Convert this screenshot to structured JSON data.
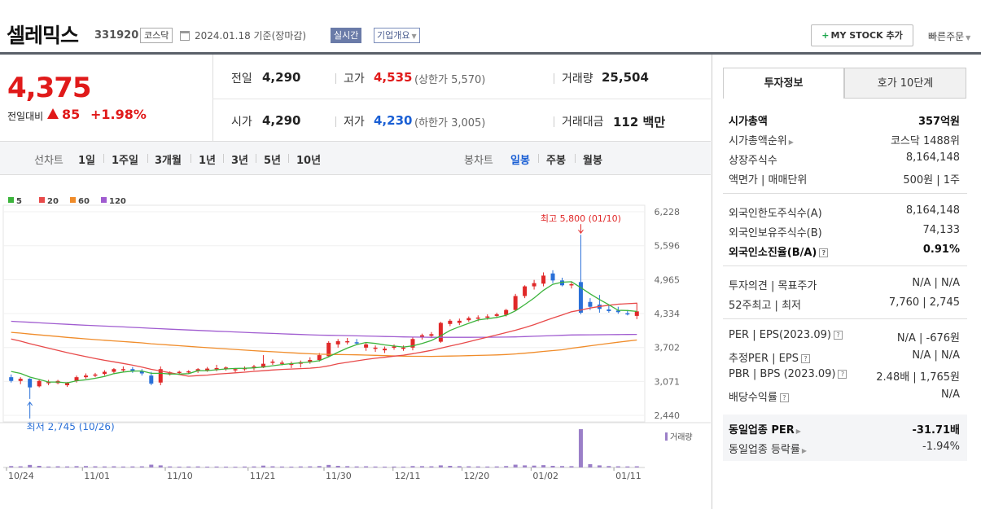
{
  "header": {
    "stock_name": "셀레믹스",
    "stock_code": "331920",
    "market": "코스닥",
    "basis_date": "2024.01.18  기준(장마감)",
    "realtime": "실시간",
    "company_overview": "기업개요",
    "mystock_plus": "+",
    "mystock": "MY STOCK 추가",
    "quick_order": "빠른주문"
  },
  "price": {
    "current": "4,375",
    "change_label": "전일대비",
    "change_value": "85",
    "change_pct": "+1.98%",
    "prev_close_label": "전일",
    "prev_close": "4,290",
    "high_label": "고가",
    "high": "4,535",
    "upper_limit": "(상한가 5,570)",
    "volume_label": "거래량",
    "volume": "25,504",
    "open_label": "시가",
    "open": "4,290",
    "low_label": "저가",
    "low": "4,230",
    "lower_limit": "(하한가 3,005)",
    "amount_label": "거래대금",
    "amount": "112 백만"
  },
  "period_bar": {
    "line_label": "선차트",
    "line_items": [
      "1일",
      "1주일",
      "3개월",
      "1년",
      "3년",
      "5년",
      "10년"
    ],
    "candle_label": "봉차트",
    "candle_items": [
      "일봉",
      "주봉",
      "월봉"
    ]
  },
  "tabs": {
    "invest": "투자정보",
    "hoga": "호가 10단계"
  },
  "info": {
    "market_cap_label": "시가총액",
    "market_cap": "357억원",
    "cap_rank_label": "시가총액순위",
    "cap_rank": "코스닥 1488위",
    "shares_label": "상장주식수",
    "shares": "8,164,148",
    "par_label": "액면가 | 매매단위",
    "par": "500원 | 1주",
    "foreign_limit_label": "외국인한도주식수(A)",
    "foreign_limit": "8,164,148",
    "foreign_hold_label": "외국인보유주식수(B)",
    "foreign_hold": "74,133",
    "foreign_ratio_label": "외국인소진율(B/A)",
    "foreign_ratio": "0.91%",
    "opinion_label": "투자의견 | 목표주가",
    "opinion": "N/A | N/A",
    "w52_label": "52주최고 | 최저",
    "w52": "7,760 | 2,745",
    "per_label": "PER | EPS(2023.09)",
    "per": "N/A | -676원",
    "est_per_label": "추정PER | EPS",
    "est_per": "N/A | N/A",
    "pbr_label": "PBR | BPS (2023.09)",
    "pbr": "2.48배 | 1,765원",
    "div_label": "배당수익률",
    "div": "N/A",
    "peer_per_label": "동일업종 PER",
    "peer_per": "-31.71배",
    "peer_rate_label": "동일업종 등락률",
    "peer_rate": "-1.94%",
    "qmark": "?"
  },
  "chart_data": {
    "type": "candlestick",
    "legend": [
      {
        "name": "5",
        "color": "#3cb43c"
      },
      {
        "name": "20",
        "color": "#e84a4a"
      },
      {
        "name": "60",
        "color": "#f08c2a"
      },
      {
        "name": "120",
        "color": "#a05cd0"
      }
    ],
    "y_ticks": [
      "6,228",
      "5,596",
      "4,965",
      "4,334",
      "3,702",
      "3,071",
      "2,440"
    ],
    "ylim": [
      2440,
      6228
    ],
    "x_ticks": [
      "10/24",
      "11/01",
      "11/10",
      "11/21",
      "11/30",
      "12/11",
      "12/20",
      "01/02",
      "01/11"
    ],
    "high_annotation": "최고 5,800 (01/10)",
    "low_annotation": "최저 2,745 (10/26)",
    "volume_label": "거래량",
    "candles": [
      [
        3150,
        3200,
        3050,
        3080
      ],
      [
        3080,
        3150,
        3020,
        3120
      ],
      [
        3120,
        3130,
        2745,
        2960
      ],
      [
        2980,
        3100,
        2960,
        3080
      ],
      [
        3050,
        3100,
        3000,
        3060
      ],
      [
        3040,
        3100,
        3020,
        3080
      ],
      [
        3000,
        3060,
        2970,
        3040
      ],
      [
        3080,
        3180,
        3050,
        3150
      ],
      [
        3150,
        3220,
        3120,
        3180
      ],
      [
        3180,
        3230,
        3150,
        3200
      ],
      [
        3210,
        3280,
        3180,
        3250
      ],
      [
        3250,
        3320,
        3220,
        3300
      ],
      [
        3280,
        3350,
        3240,
        3300
      ],
      [
        3300,
        3340,
        3230,
        3260
      ],
      [
        3260,
        3300,
        3180,
        3220
      ],
      [
        3180,
        3250,
        3000,
        3030
      ],
      [
        3050,
        3350,
        3000,
        3300
      ],
      [
        3200,
        3260,
        3180,
        3240
      ],
      [
        3230,
        3270,
        3200,
        3250
      ],
      [
        3250,
        3280,
        3220,
        3260
      ],
      [
        3270,
        3320,
        3230,
        3300
      ],
      [
        3280,
        3340,
        3250,
        3310
      ],
      [
        3300,
        3380,
        3260,
        3320
      ],
      [
        3300,
        3350,
        3270,
        3330
      ],
      [
        3280,
        3320,
        3240,
        3300
      ],
      [
        3300,
        3350,
        3270,
        3320
      ],
      [
        3330,
        3380,
        3280,
        3350
      ],
      [
        3330,
        3560,
        3320,
        3400
      ],
      [
        3420,
        3480,
        3380,
        3440
      ],
      [
        3400,
        3460,
        3370,
        3420
      ],
      [
        3380,
        3440,
        3320,
        3400
      ],
      [
        3400,
        3460,
        3330,
        3430
      ],
      [
        3430,
        3520,
        3400,
        3470
      ],
      [
        3470,
        3600,
        3440,
        3560
      ],
      [
        3540,
        3820,
        3520,
        3790
      ],
      [
        3760,
        3860,
        3700,
        3820
      ],
      [
        3810,
        3880,
        3760,
        3820
      ],
      [
        3800,
        3860,
        3760,
        3790
      ],
      [
        3700,
        3790,
        3640,
        3760
      ],
      [
        3680,
        3740,
        3620,
        3700
      ],
      [
        3650,
        3720,
        3600,
        3680
      ],
      [
        3700,
        3760,
        3660,
        3720
      ],
      [
        3680,
        3740,
        3640,
        3700
      ],
      [
        3700,
        3900,
        3650,
        3860
      ],
      [
        3890,
        3960,
        3850,
        3930
      ],
      [
        3920,
        3990,
        3880,
        3950
      ],
      [
        3810,
        4180,
        3790,
        4160
      ],
      [
        4140,
        4230,
        4100,
        4200
      ],
      [
        4160,
        4240,
        4120,
        4200
      ],
      [
        4210,
        4280,
        4180,
        4250
      ],
      [
        4240,
        4300,
        4190,
        4260
      ],
      [
        4260,
        4320,
        4220,
        4280
      ],
      [
        4290,
        4350,
        4250,
        4320
      ],
      [
        4310,
        4420,
        4280,
        4400
      ],
      [
        4400,
        4700,
        4380,
        4660
      ],
      [
        4660,
        4860,
        4620,
        4840
      ],
      [
        4840,
        4960,
        4780,
        4900
      ],
      [
        4890,
        5100,
        4840,
        5040
      ],
      [
        5080,
        5140,
        4900,
        4950
      ],
      [
        4950,
        5000,
        4840,
        4860
      ],
      [
        4860,
        4920,
        4800,
        4880
      ],
      [
        4920,
        5800,
        4320,
        4350
      ],
      [
        4550,
        4620,
        4400,
        4460
      ],
      [
        4500,
        4680,
        4350,
        4420
      ],
      [
        4410,
        4500,
        4350,
        4380
      ],
      [
        4390,
        4460,
        4330,
        4360
      ],
      [
        4340,
        4400,
        4300,
        4330
      ],
      [
        4290,
        4535,
        4230,
        4375
      ]
    ],
    "volumes": [
      30,
      25,
      55,
      35,
      20,
      25,
      22,
      28,
      30,
      25,
      22,
      25,
      20,
      22,
      24,
      60,
      45,
      22,
      18,
      20,
      22,
      18,
      20,
      18,
      16,
      20,
      22,
      40,
      25,
      20,
      18,
      22,
      24,
      30,
      55,
      35,
      28,
      22,
      25,
      20,
      18,
      20,
      18,
      30,
      28,
      25,
      45,
      35,
      28,
      25,
      22,
      20,
      22,
      30,
      60,
      45,
      40,
      50,
      35,
      30,
      28,
      820,
      70,
      45,
      30,
      25,
      22,
      25
    ]
  }
}
